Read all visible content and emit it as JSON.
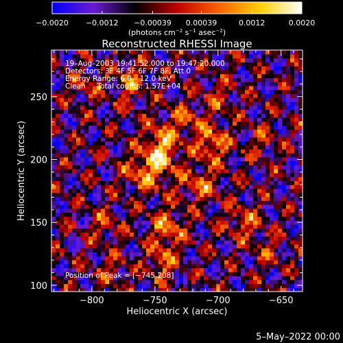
{
  "chart_data": {
    "type": "heatmap",
    "title": "Reconstructed RHESSI Image",
    "xlabel": "Heliocentric X (arcsec)",
    "ylabel": "Heliocentric Y (arcsec)",
    "xlim": [
      -832,
      -633
    ],
    "ylim": [
      95,
      287
    ],
    "x_ticks": [
      -800,
      -750,
      -700,
      -650
    ],
    "x_tick_labels": [
      "−800",
      "−750",
      "−700",
      "−650"
    ],
    "y_ticks": [
      100,
      150,
      200,
      250
    ],
    "y_tick_labels": [
      "100",
      "150",
      "200",
      "250"
    ],
    "colorbar": {
      "range": [
        -0.002,
        0.002
      ],
      "ticks": [
        -0.002,
        -0.0012,
        -0.00039,
        0.00039,
        0.0012,
        0.002
      ],
      "tick_labels": [
        "−0.0020",
        "−0.0012",
        "−0.00039",
        "0.00039",
        "0.0012",
        "0.0020"
      ],
      "units_main": "(photons cm",
      "units_sup1": "−2",
      "units_mid": " s",
      "units_sup2": "−1",
      "units_end": " asec",
      "units_sup3": "−2",
      "units_close": ")",
      "colors": [
        "#0000ff",
        "#6a1bd0",
        "#000000",
        "#c00000",
        "#ff6000",
        "#ffd000",
        "#ffffff"
      ]
    },
    "annotations": [
      "19–Aug–2003 19:41:52.000 to 19:47:20.000",
      "Detectors: 3F 4F 5F 6F 7F 8F, Att 0",
      "Energy Range: 6.0 – 12.0 keV",
      "Clean     Total counts: 1.57E+04"
    ],
    "peak_label": "Position of Peak = [−745,208]",
    "peak": [
      -745,
      208
    ],
    "sources": [
      {
        "x": -745,
        "y": 208,
        "amp": 0.002,
        "sx": 9,
        "sy": 14
      },
      {
        "x": -705,
        "y": 213,
        "amp": 0.0016,
        "sx": 9,
        "sy": 10
      },
      {
        "x": -760,
        "y": 190,
        "amp": 0.0013,
        "sx": 10,
        "sy": 10
      },
      {
        "x": -715,
        "y": 180,
        "amp": 0.0012,
        "sx": 11,
        "sy": 9
      },
      {
        "x": -740,
        "y": 145,
        "amp": 0.0014,
        "sx": 9,
        "sy": 11
      },
      {
        "x": -745,
        "y": 118,
        "amp": 0.0013,
        "sx": 7,
        "sy": 9
      },
      {
        "x": -680,
        "y": 150,
        "amp": 0.0011,
        "sx": 10,
        "sy": 9
      },
      {
        "x": -770,
        "y": 262,
        "amp": 0.0012,
        "sx": 7,
        "sy": 12
      },
      {
        "x": -790,
        "y": 148,
        "amp": 0.0008,
        "sx": 9,
        "sy": 9
      },
      {
        "x": -785,
        "y": 112,
        "amp": 0.0007,
        "sx": 9,
        "sy": 8
      },
      {
        "x": -700,
        "y": 250,
        "amp": 0.0008,
        "sx": 9,
        "sy": 9
      },
      {
        "x": -725,
        "y": 232,
        "amp": 0.0011,
        "sx": 8,
        "sy": 8
      },
      {
        "x": -665,
        "y": 215,
        "amp": 0.0007,
        "sx": 8,
        "sy": 10
      },
      {
        "x": -805,
        "y": 258,
        "amp": 0.0008,
        "sx": 8,
        "sy": 8
      },
      {
        "x": -660,
        "y": 128,
        "amp": 0.0007,
        "sx": 8,
        "sy": 8
      }
    ]
  },
  "footer": {
    "date_stamp": "5–May–2022 00:00"
  }
}
